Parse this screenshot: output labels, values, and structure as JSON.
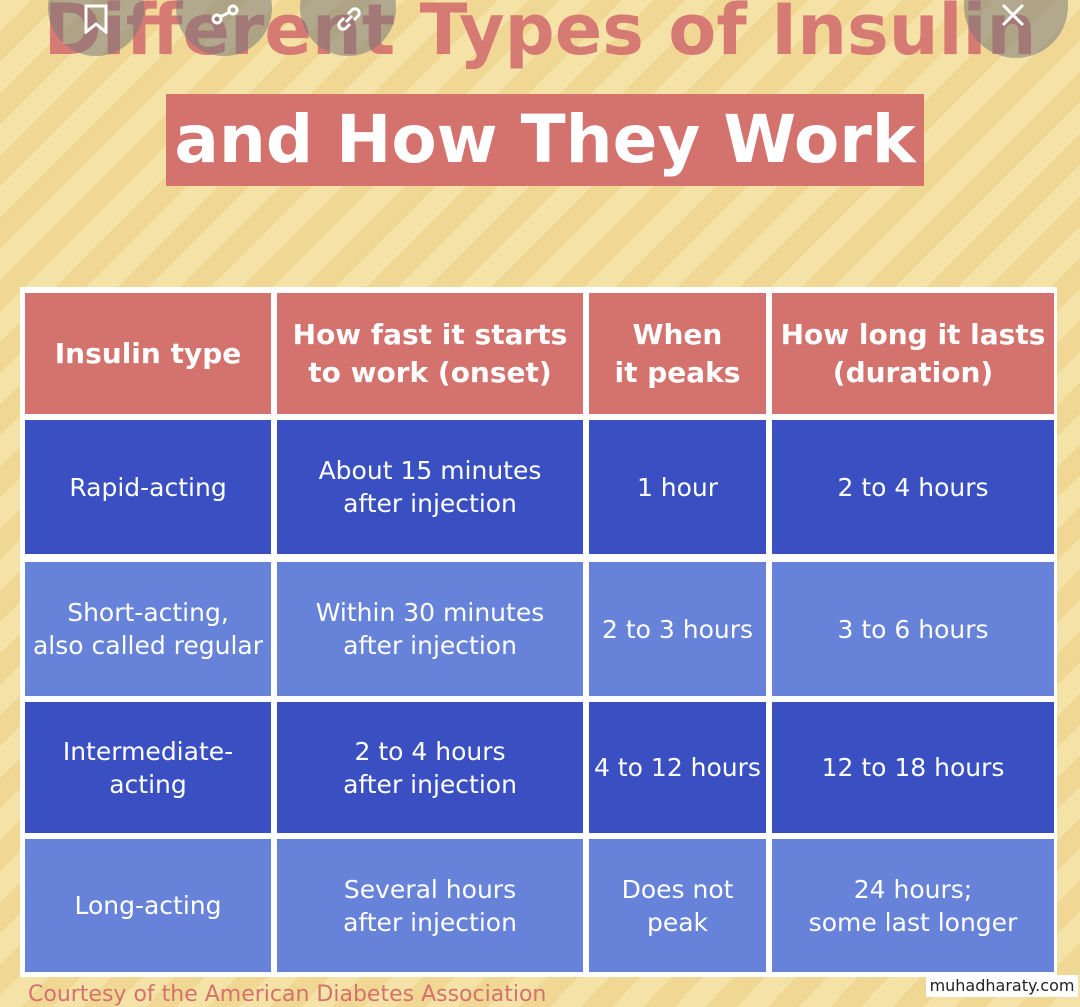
{
  "title": {
    "line1": "Different Types of Insulin",
    "line2": "and How They Work"
  },
  "overlay": {
    "icons": [
      "bookmark-icon",
      "share-icon",
      "link-icon",
      "close-icon"
    ]
  },
  "table": {
    "headers": [
      "Insulin type",
      "How fast it starts\nto work (onset)",
      "When\nit peaks",
      "How long it lasts\n(duration)"
    ],
    "rows": [
      [
        "Rapid-acting",
        "About 15 minutes\nafter injection",
        "1 hour",
        "2 to 4 hours"
      ],
      [
        "Short-acting,\nalso called regular",
        "Within 30 minutes\nafter injection",
        "2 to 3 hours",
        "3 to 6 hours"
      ],
      [
        "Intermediate-\nacting",
        "2 to 4 hours\nafter injection",
        "4 to 12 hours",
        "12 to 18 hours"
      ],
      [
        "Long-acting",
        "Several hours\nafter injection",
        "Does not\npeak",
        "24 hours;\nsome last longer"
      ]
    ]
  },
  "footer": {
    "credit": "Courtesy of the American Diabetes Association"
  },
  "watermark": "muhadharaty.com",
  "colors": {
    "background": "#f5e2a6",
    "header": "#d4726e",
    "row_dark": "#3a50c2",
    "row_light": "#6683d9"
  }
}
